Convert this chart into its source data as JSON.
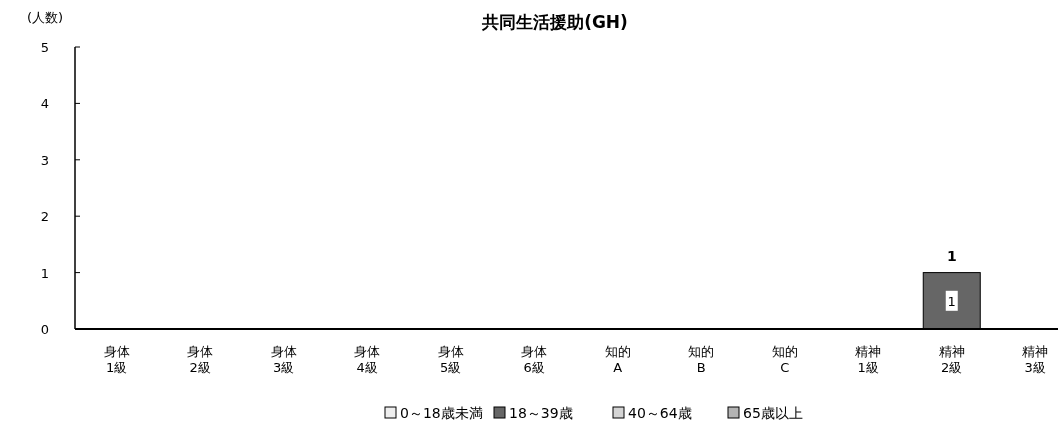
{
  "chart_data": {
    "type": "bar",
    "title": "共同生活援助(GH)",
    "ylabel": "(人数)",
    "stacked": true,
    "categories": [
      "身体\n1級",
      "身体\n2級",
      "身体\n3級",
      "身体\n4級",
      "身体\n5級",
      "身体\n6級",
      "知的\nA",
      "知的\nB",
      "知的\nC",
      "精神\n1級",
      "精神\n2級",
      "精神\n3級"
    ],
    "series": [
      {
        "name": "0～18歳未満",
        "color": "#eeeeee",
        "values": [
          0,
          0,
          0,
          0,
          0,
          0,
          0,
          0,
          0,
          0,
          0,
          0
        ],
        "value_labels": [
          null,
          null,
          null,
          null,
          null,
          null,
          null,
          null,
          null,
          null,
          null,
          null
        ]
      },
      {
        "name": "18～39歳",
        "color": "#666666",
        "values": [
          0,
          0,
          0,
          0,
          0,
          0,
          0,
          0,
          0,
          0,
          1,
          0
        ],
        "value_labels": [
          null,
          null,
          null,
          null,
          null,
          null,
          null,
          null,
          null,
          null,
          "1",
          null
        ]
      },
      {
        "name": "40～64歳",
        "color": "#d4d4d4",
        "values": [
          0,
          0,
          0,
          0,
          0,
          0,
          0,
          0,
          0,
          0,
          0,
          0
        ],
        "value_labels": [
          null,
          null,
          null,
          null,
          null,
          null,
          null,
          null,
          null,
          null,
          null,
          null
        ]
      },
      {
        "name": "65歳以上",
        "color": "#b4b4b4",
        "values": [
          0,
          0,
          0,
          0,
          0,
          0,
          0,
          0,
          0,
          0,
          0,
          0
        ],
        "value_labels": [
          null,
          null,
          null,
          null,
          null,
          null,
          null,
          null,
          null,
          null,
          null,
          null
        ]
      }
    ],
    "totals": [
      null,
      null,
      null,
      null,
      null,
      null,
      null,
      null,
      null,
      null,
      "1",
      null
    ],
    "ylim": [
      0,
      5
    ],
    "yticks": [
      0,
      1,
      2,
      3,
      4,
      5
    ],
    "grid": false,
    "legend": "bottom"
  }
}
